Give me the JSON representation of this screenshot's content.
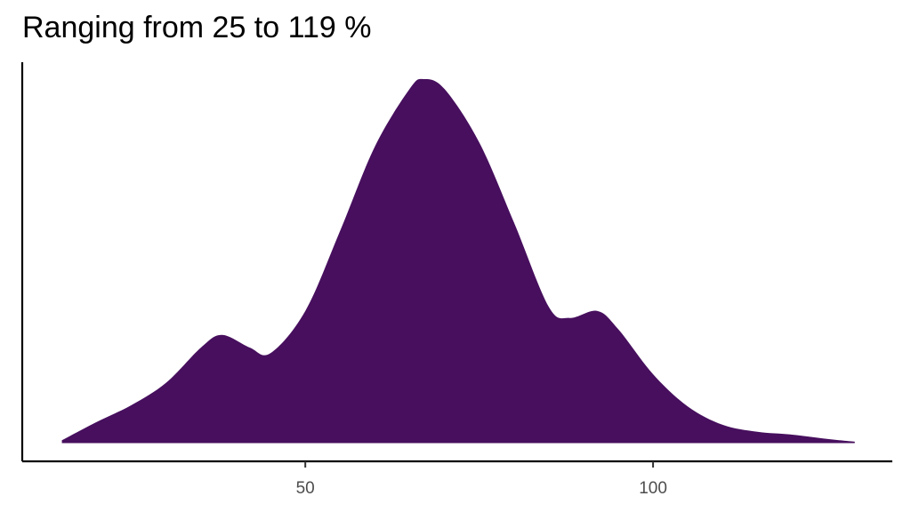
{
  "chart_data": {
    "type": "area",
    "title": "Ranging from 25 to 119 %",
    "color": "#470f5e",
    "x": [
      15,
      20,
      25,
      30,
      35,
      38,
      42,
      45,
      50,
      55,
      60,
      65,
      67,
      70,
      75,
      80,
      85,
      88,
      92,
      95,
      100,
      105,
      110,
      115,
      120,
      125,
      129
    ],
    "values": [
      0.0002,
      0.0015,
      0.0027,
      0.0043,
      0.0068,
      0.0077,
      0.0068,
      0.0064,
      0.0094,
      0.0151,
      0.0211,
      0.0252,
      0.0259,
      0.0252,
      0.0214,
      0.0157,
      0.0097,
      0.0089,
      0.0094,
      0.0081,
      0.0049,
      0.0026,
      0.0013,
      0.0008,
      0.0006,
      0.0003,
      0.0001
    ],
    "xlim": [
      9.3,
      134.4
    ],
    "xticks": [
      50,
      100
    ],
    "ylim": [
      -0.0013,
      0.0271
    ]
  }
}
